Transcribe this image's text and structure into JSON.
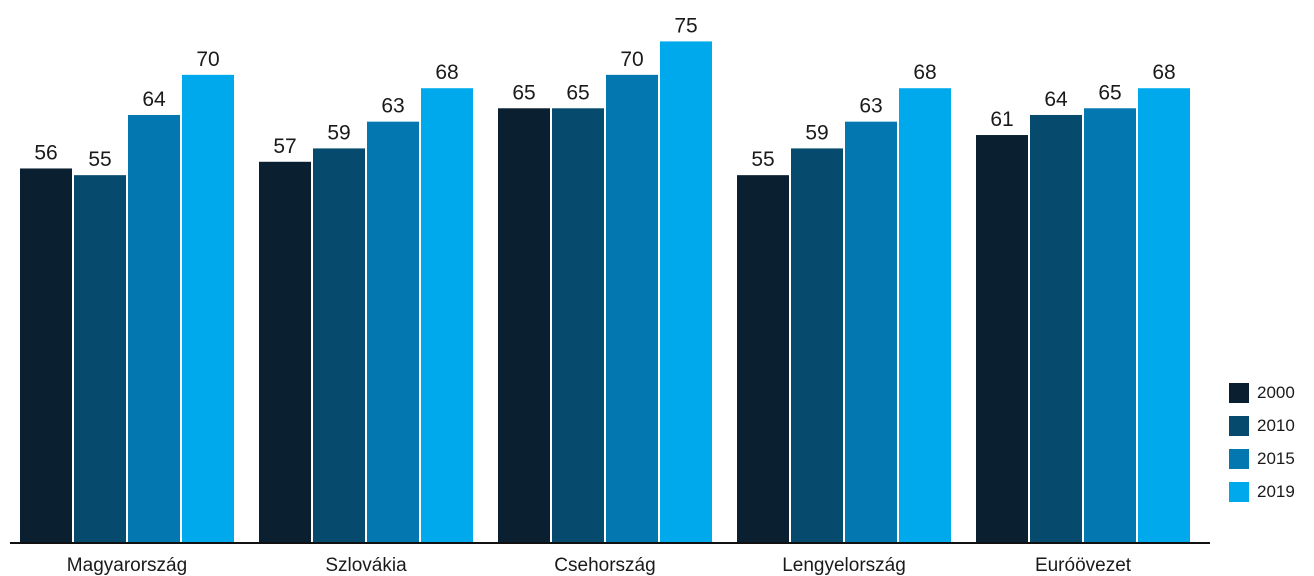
{
  "chart_data": {
    "type": "bar",
    "categories": [
      "Magyarország",
      "Szlovákia",
      "Csehország",
      "Lengyelország",
      "Euróövezet"
    ],
    "series": [
      {
        "name": "2000",
        "color": "#0a1f2f",
        "values": [
          56,
          57,
          65,
          55,
          61
        ]
      },
      {
        "name": "2010",
        "color": "#064a6e",
        "values": [
          55,
          59,
          65,
          59,
          64
        ]
      },
      {
        "name": "2015",
        "color": "#0277b0",
        "values": [
          64,
          63,
          70,
          63,
          65
        ]
      },
      {
        "name": "2019",
        "color": "#00a9ec",
        "values": [
          70,
          68,
          75,
          68,
          68
        ]
      }
    ],
    "title": "",
    "xlabel": "",
    "ylabel": "",
    "ylim": [
      0,
      80
    ],
    "grid": false,
    "legend_position": "bottom-right",
    "data_labels": true
  }
}
